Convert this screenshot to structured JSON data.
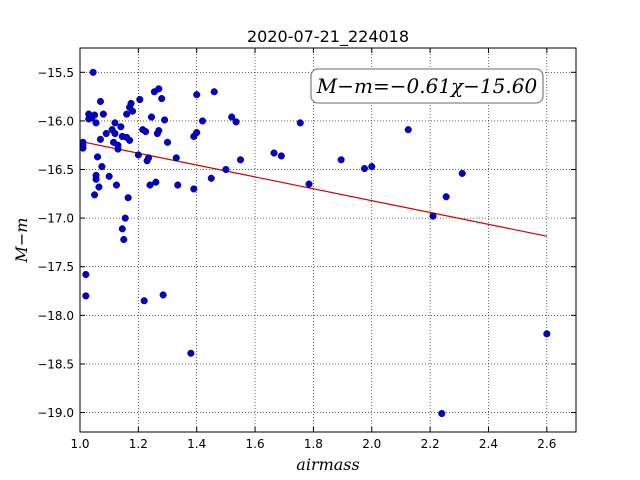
{
  "chart_data": {
    "type": "scatter",
    "title": "2020-07-21_224018",
    "xlabel": "airmass",
    "ylabel": "M−m",
    "xlim": [
      1.0,
      2.7
    ],
    "ylim": [
      -15.25,
      -19.2
    ],
    "x_ticks": [
      1.0,
      1.2,
      1.4,
      1.6,
      1.8,
      2.0,
      2.2,
      2.4,
      2.6
    ],
    "x_tick_labels": [
      "1.0",
      "1.2",
      "1.4",
      "1.6",
      "1.8",
      "2.0",
      "2.2",
      "2.4",
      "2.6"
    ],
    "y_ticks": [
      -15.5,
      -16.0,
      -16.5,
      -17.0,
      -17.5,
      -18.0,
      -18.5,
      -19.0
    ],
    "y_tick_labels": [
      "−15.5",
      "−16.0",
      "−16.5",
      "−17.0",
      "−17.5",
      "−18.0",
      "−18.5",
      "−19.0"
    ],
    "grid": true,
    "annotation": "M−m=−0.61χ−15.60",
    "point_color": "#0000cc",
    "fit_color": "#cc0000",
    "fit": {
      "slope": -0.61,
      "intercept": -15.6,
      "x_range": [
        1.0,
        2.6
      ]
    },
    "points": [
      [
        1.01,
        -16.25
      ],
      [
        1.01,
        -16.28
      ],
      [
        1.01,
        -16.22
      ],
      [
        1.02,
        -17.58
      ],
      [
        1.02,
        -17.8
      ],
      [
        1.03,
        -15.93
      ],
      [
        1.03,
        -15.98
      ],
      [
        1.04,
        -15.97
      ],
      [
        1.045,
        -15.5
      ],
      [
        1.05,
        -15.94
      ],
      [
        1.05,
        -16.76
      ],
      [
        1.055,
        -16.02
      ],
      [
        1.055,
        -16.56
      ],
      [
        1.055,
        -16.6
      ],
      [
        1.06,
        -16.37
      ],
      [
        1.065,
        -16.68
      ],
      [
        1.07,
        -16.19
      ],
      [
        1.07,
        -15.8
      ],
      [
        1.075,
        -16.47
      ],
      [
        1.08,
        -15.93
      ],
      [
        1.09,
        -16.13
      ],
      [
        1.1,
        -16.57
      ],
      [
        1.11,
        -16.09
      ],
      [
        1.115,
        -16.22
      ],
      [
        1.12,
        -16.02
      ],
      [
        1.12,
        -16.13
      ],
      [
        1.125,
        -16.66
      ],
      [
        1.13,
        -16.29
      ],
      [
        1.13,
        -16.25
      ],
      [
        1.14,
        -16.06
      ],
      [
        1.145,
        -16.16
      ],
      [
        1.145,
        -17.11
      ],
      [
        1.15,
        -17.22
      ],
      [
        1.155,
        -17.0
      ],
      [
        1.16,
        -16.17
      ],
      [
        1.16,
        -15.93
      ],
      [
        1.165,
        -16.79
      ],
      [
        1.17,
        -16.2
      ],
      [
        1.17,
        -15.86
      ],
      [
        1.175,
        -15.82
      ],
      [
        1.18,
        -15.9
      ],
      [
        1.2,
        -16.35
      ],
      [
        1.205,
        -15.78
      ],
      [
        1.215,
        -16.09
      ],
      [
        1.22,
        -17.85
      ],
      [
        1.225,
        -16.11
      ],
      [
        1.23,
        -16.41
      ],
      [
        1.235,
        -16.38
      ],
      [
        1.24,
        -16.66
      ],
      [
        1.245,
        -15.96
      ],
      [
        1.255,
        -15.7
      ],
      [
        1.26,
        -16.63
      ],
      [
        1.265,
        -16.13
      ],
      [
        1.27,
        -16.1
      ],
      [
        1.27,
        -15.67
      ],
      [
        1.28,
        -15.77
      ],
      [
        1.285,
        -17.79
      ],
      [
        1.29,
        -15.99
      ],
      [
        1.3,
        -16.22
      ],
      [
        1.33,
        -16.38
      ],
      [
        1.335,
        -16.66
      ],
      [
        1.38,
        -18.39
      ],
      [
        1.39,
        -16.16
      ],
      [
        1.39,
        -16.7
      ],
      [
        1.4,
        -15.73
      ],
      [
        1.4,
        -16.12
      ],
      [
        1.42,
        -16.0
      ],
      [
        1.45,
        -16.59
      ],
      [
        1.46,
        -15.7
      ],
      [
        1.5,
        -16.5
      ],
      [
        1.52,
        -15.96
      ],
      [
        1.535,
        -16.01
      ],
      [
        1.55,
        -16.4
      ],
      [
        1.665,
        -16.33
      ],
      [
        1.69,
        -16.36
      ],
      [
        1.755,
        -16.02
      ],
      [
        1.785,
        -16.65
      ],
      [
        1.895,
        -16.4
      ],
      [
        1.975,
        -16.49
      ],
      [
        2.0,
        -16.47
      ],
      [
        2.125,
        -16.09
      ],
      [
        2.21,
        -16.98
      ],
      [
        2.24,
        -19.01
      ],
      [
        2.255,
        -16.78
      ],
      [
        2.31,
        -16.54
      ],
      [
        2.6,
        -18.19
      ]
    ]
  }
}
